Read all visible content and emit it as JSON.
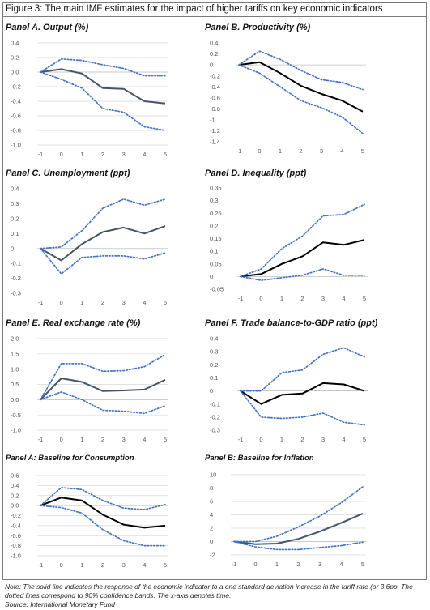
{
  "figure": {
    "title": "Figure 3: The main IMF estimates for the impact of higher tariffs on key economic indicators",
    "note_line1": "Note: The solid line indicates the response of the economic indicator to a one standard deviation increase in the tariff rate (or 3.6pp.  The",
    "note_line2": "dotted lines correspond to 90% confidence bands. The x-axis denotes time.",
    "source": "Source: International Monetary Fund"
  },
  "colors": {
    "line_slate": "#44546a",
    "line_black": "#000000",
    "band": "#4472c4",
    "grid": "#d9d9d9",
    "tick": "#555555"
  },
  "chart_data": [
    {
      "id": "A",
      "type": "line",
      "title": "Panel A. Output (%)",
      "x": [
        -1,
        0,
        1,
        2,
        3,
        4,
        5
      ],
      "xticks": [
        "-1",
        "0",
        "1",
        "2",
        "3",
        "4",
        "5"
      ],
      "yticks": [
        "0.4",
        "0.2",
        "0.0",
        "-0.2",
        "-0.4",
        "-0.6",
        "-0.8",
        "-1.0"
      ],
      "ylim": [
        -1.0,
        0.4
      ],
      "grid": true,
      "line_color": "#44546a",
      "series": [
        {
          "role": "estimate",
          "values": [
            0,
            0.04,
            -0.02,
            -0.22,
            -0.23,
            -0.4,
            -0.43
          ]
        },
        {
          "role": "upper",
          "values": [
            0,
            0.18,
            0.16,
            0.1,
            0.05,
            -0.05,
            -0.05
          ]
        },
        {
          "role": "lower",
          "values": [
            0,
            -0.1,
            -0.22,
            -0.5,
            -0.55,
            -0.75,
            -0.8
          ]
        }
      ]
    },
    {
      "id": "B",
      "type": "line",
      "title": "Panel B. Productivity (%)",
      "x": [
        -1,
        0,
        1,
        2,
        3,
        4,
        5
      ],
      "xticks": [
        "-1",
        "0",
        "1",
        "2",
        "3",
        "4",
        "5"
      ],
      "yticks": [
        "0.4",
        "0.2",
        "0",
        "-0.2",
        "-0.4",
        "-0.6",
        "-0.8",
        "-1",
        "-1.2",
        "-1.4"
      ],
      "ylim": [
        -1.4,
        0.4
      ],
      "grid": false,
      "line_color": "#000000",
      "series": [
        {
          "role": "estimate",
          "values": [
            0,
            0.05,
            -0.15,
            -0.38,
            -0.53,
            -0.65,
            -0.85
          ]
        },
        {
          "role": "upper",
          "values": [
            0,
            0.25,
            0.1,
            -0.1,
            -0.27,
            -0.32,
            -0.45
          ]
        },
        {
          "role": "lower",
          "values": [
            0,
            -0.15,
            -0.4,
            -0.65,
            -0.78,
            -0.95,
            -1.25
          ]
        }
      ]
    },
    {
      "id": "C",
      "type": "line",
      "title": "Panel C. Unemployment (ppt)",
      "x": [
        -1,
        0,
        1,
        2,
        3,
        4,
        5
      ],
      "xticks": [
        "-1",
        "0",
        "1",
        "2",
        "3",
        "4",
        "5"
      ],
      "yticks": [
        "0.4",
        "0.3",
        "0.2",
        "0.1",
        "0",
        "-0.1",
        "-0.2",
        "-0.3"
      ],
      "ylim": [
        -0.3,
        0.4
      ],
      "grid": false,
      "line_color": "#44546a",
      "series": [
        {
          "role": "estimate",
          "values": [
            0,
            -0.08,
            0.03,
            0.11,
            0.14,
            0.1,
            0.15
          ]
        },
        {
          "role": "upper",
          "values": [
            0,
            0.01,
            0.12,
            0.27,
            0.33,
            0.29,
            0.33
          ]
        },
        {
          "role": "lower",
          "values": [
            0,
            -0.17,
            -0.06,
            -0.05,
            -0.05,
            -0.07,
            -0.03
          ]
        }
      ]
    },
    {
      "id": "D",
      "type": "line",
      "title": "Panel D. Inequality (ppt)",
      "x": [
        -1,
        0,
        1,
        2,
        3,
        4,
        5
      ],
      "xticks": [
        "-1",
        "0",
        "1",
        "2",
        "3",
        "4",
        "5"
      ],
      "yticks": [
        "0.35",
        "0.3",
        "0.25",
        "0.2",
        "0.15",
        "0.1",
        "0.05",
        "0",
        "-0.05"
      ],
      "ylim": [
        -0.05,
        0.35
      ],
      "grid": false,
      "line_color": "#000000",
      "series": [
        {
          "role": "estimate",
          "values": [
            0,
            0.01,
            0.05,
            0.08,
            0.135,
            0.125,
            0.145
          ]
        },
        {
          "role": "upper",
          "values": [
            0,
            0.03,
            0.11,
            0.16,
            0.24,
            0.245,
            0.285
          ]
        },
        {
          "role": "lower",
          "values": [
            0,
            -0.015,
            -0.005,
            0.005,
            0.03,
            0.005,
            0.005
          ]
        }
      ]
    },
    {
      "id": "E",
      "type": "line",
      "title": "Panel E. Real exchange rate (%)",
      "x": [
        -1,
        0,
        1,
        2,
        3,
        4,
        5
      ],
      "xticks": [
        "-1",
        "0",
        "1",
        "2",
        "3",
        "4",
        "5"
      ],
      "yticks": [
        "2.0",
        "1.5",
        "1.0",
        "0.5",
        "0.0",
        "-0.5",
        "-1.0"
      ],
      "ylim": [
        -1.0,
        2.0
      ],
      "grid": true,
      "line_color": "#44546a",
      "series": [
        {
          "role": "estimate",
          "values": [
            0,
            0.7,
            0.58,
            0.28,
            0.3,
            0.33,
            0.65
          ]
        },
        {
          "role": "upper",
          "values": [
            0,
            1.18,
            1.18,
            0.93,
            0.95,
            1.08,
            1.48
          ]
        },
        {
          "role": "lower",
          "values": [
            0,
            0.25,
            0.0,
            -0.35,
            -0.38,
            -0.45,
            -0.2
          ]
        }
      ]
    },
    {
      "id": "F",
      "type": "line",
      "title": "Panel F. Trade balance-to-GDP ratio (ppt)",
      "x": [
        -1,
        0,
        1,
        2,
        3,
        4,
        5
      ],
      "xticks": [
        "-1",
        "0",
        "1",
        "2",
        "3",
        "4",
        "5"
      ],
      "yticks": [
        "0.4",
        "0.3",
        "0.2",
        "0.1",
        "0",
        "-0.1",
        "-0.2",
        "-0.3"
      ],
      "ylim": [
        -0.3,
        0.4
      ],
      "grid": false,
      "line_color": "#000000",
      "series": [
        {
          "role": "estimate",
          "values": [
            0,
            -0.1,
            -0.03,
            -0.02,
            0.06,
            0.05,
            0.0
          ]
        },
        {
          "role": "upper",
          "values": [
            0,
            0.0,
            0.14,
            0.16,
            0.28,
            0.33,
            0.26
          ]
        },
        {
          "role": "lower",
          "values": [
            0,
            -0.2,
            -0.21,
            -0.2,
            -0.17,
            -0.24,
            -0.26
          ]
        }
      ]
    },
    {
      "id": "G",
      "type": "line",
      "title": "Panel A: Baseline for Consumption",
      "x": [
        -1,
        0,
        1,
        2,
        3,
        4,
        5
      ],
      "xticks": [
        "-1",
        "0",
        "1",
        "2",
        "3",
        "4",
        "5"
      ],
      "yticks": [
        "0.6",
        "0.4",
        "0.2",
        "0.0",
        "-0.2",
        "-0.4",
        "-0.6",
        "-0.8",
        "-1.0"
      ],
      "ylim": [
        -1.0,
        0.6
      ],
      "grid": true,
      "line_color": "#000000",
      "series": [
        {
          "role": "estimate",
          "values": [
            0,
            0.16,
            0.1,
            -0.18,
            -0.38,
            -0.44,
            -0.4
          ]
        },
        {
          "role": "upper",
          "values": [
            0,
            0.36,
            0.32,
            0.1,
            -0.05,
            -0.08,
            0.02
          ]
        },
        {
          "role": "lower",
          "values": [
            0,
            -0.04,
            -0.15,
            -0.48,
            -0.7,
            -0.8,
            -0.8
          ]
        }
      ]
    },
    {
      "id": "H",
      "type": "line",
      "title": "Panel B: Baseline for Inflation",
      "x": [
        -1,
        0,
        1,
        2,
        3,
        4,
        5
      ],
      "xticks": [
        "-1",
        "0",
        "1",
        "2",
        "3",
        "4",
        "5"
      ],
      "yticks": [
        "10",
        "8",
        "6",
        "4",
        "2",
        "0",
        "-2"
      ],
      "ylim": [
        -2,
        10
      ],
      "grid": true,
      "line_color": "#44546a",
      "series": [
        {
          "role": "estimate",
          "values": [
            0,
            -0.4,
            -0.3,
            0.4,
            1.5,
            2.8,
            4.2
          ]
        },
        {
          "role": "upper",
          "values": [
            0,
            0.0,
            0.8,
            2.2,
            3.8,
            5.8,
            8.2
          ]
        },
        {
          "role": "lower",
          "values": [
            0,
            -0.8,
            -1.2,
            -1.2,
            -0.9,
            -0.6,
            -0.1
          ]
        }
      ]
    }
  ]
}
